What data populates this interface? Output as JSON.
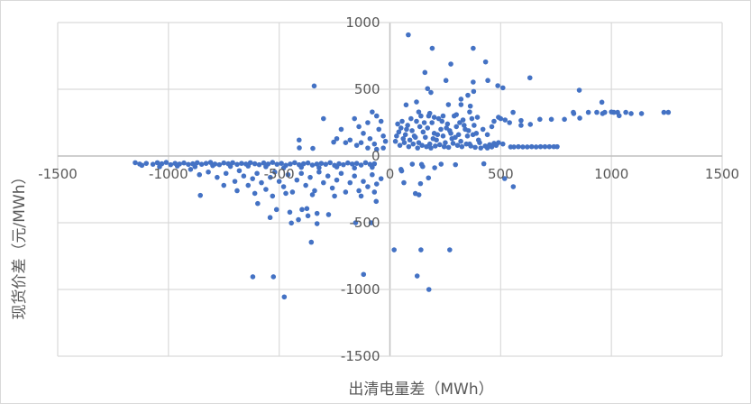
{
  "chart_data": {
    "type": "scatter",
    "title": "",
    "xlabel": "出清电量差（MWh）",
    "ylabel": "现货价差（元/MWh）",
    "xlim": [
      -1500,
      1500
    ],
    "ylim": [
      -1500,
      1000
    ],
    "xticks": [
      -1500,
      -1000,
      -500,
      0,
      500,
      1000,
      1500
    ],
    "yticks": [
      -1500,
      -1000,
      -500,
      0,
      500,
      1000
    ],
    "grid": true,
    "legend": "none",
    "color": "#4472c4",
    "points": [
      [
        83,
        908
      ],
      [
        191,
        807
      ],
      [
        376,
        807
      ],
      [
        432,
        705
      ],
      [
        275,
        689
      ],
      [
        158,
        626
      ],
      [
        632,
        586
      ],
      [
        253,
        566
      ],
      [
        442,
        566
      ],
      [
        376,
        554
      ],
      [
        487,
        527
      ],
      [
        510,
        511
      ],
      [
        855,
        493
      ],
      [
        170,
        505
      ],
      [
        185,
        476
      ],
      [
        378,
        484
      ],
      [
        352,
        455
      ],
      [
        957,
        403
      ],
      [
        120,
        405
      ],
      [
        73,
        383
      ],
      [
        321,
        426
      ],
      [
        264,
        385
      ],
      [
        363,
        374
      ],
      [
        321,
        385
      ],
      [
        556,
        327
      ],
      [
        592,
        266
      ],
      [
        592,
        230
      ],
      [
        634,
        237
      ],
      [
        677,
        275
      ],
      [
        729,
        275
      ],
      [
        788,
        275
      ],
      [
        828,
        327
      ],
      [
        857,
        284
      ],
      [
        896,
        327
      ],
      [
        934,
        327
      ],
      [
        970,
        327
      ],
      [
        1011,
        327
      ],
      [
        1028,
        327
      ],
      [
        1035,
        302
      ],
      [
        1065,
        327
      ],
      [
        1089,
        318
      ],
      [
        1136,
        318
      ],
      [
        1237,
        327
      ],
      [
        1257,
        327
      ],
      [
        830,
        318
      ],
      [
        960,
        318
      ],
      [
        1000,
        330
      ],
      [
        545,
        68
      ],
      [
        560,
        68
      ],
      [
        580,
        70
      ],
      [
        600,
        68
      ],
      [
        620,
        68
      ],
      [
        640,
        70
      ],
      [
        660,
        68
      ],
      [
        680,
        70
      ],
      [
        700,
        70
      ],
      [
        720,
        70
      ],
      [
        740,
        70
      ],
      [
        755,
        70
      ],
      [
        510,
        90
      ],
      [
        470,
        95
      ],
      [
        450,
        85
      ],
      [
        430,
        75
      ],
      [
        440,
        60
      ],
      [
        460,
        68
      ],
      [
        480,
        80
      ],
      [
        490,
        100
      ],
      [
        30,
        150
      ],
      [
        40,
        180
      ],
      [
        50,
        210
      ],
      [
        60,
        130
      ],
      [
        70,
        160
      ],
      [
        80,
        230
      ],
      [
        90,
        120
      ],
      [
        100,
        190
      ],
      [
        110,
        150
      ],
      [
        120,
        260
      ],
      [
        130,
        100
      ],
      [
        140,
        300
      ],
      [
        150,
        180
      ],
      [
        160,
        140
      ],
      [
        170,
        210
      ],
      [
        180,
        90
      ],
      [
        190,
        250
      ],
      [
        200,
        170
      ],
      [
        210,
        120
      ],
      [
        220,
        280
      ],
      [
        230,
        200
      ],
      [
        240,
        150
      ],
      [
        250,
        100
      ],
      [
        260,
        240
      ],
      [
        270,
        190
      ],
      [
        280,
        130
      ],
      [
        290,
        300
      ],
      [
        300,
        220
      ],
      [
        310,
        160
      ],
      [
        320,
        110
      ],
      [
        330,
        270
      ],
      [
        340,
        200
      ],
      [
        350,
        150
      ],
      [
        360,
        90
      ],
      [
        370,
        280
      ],
      [
        380,
        230
      ],
      [
        390,
        170
      ],
      [
        400,
        120
      ],
      [
        410,
        60
      ],
      [
        420,
        200
      ],
      [
        440,
        160
      ],
      [
        460,
        220
      ],
      [
        470,
        260
      ],
      [
        490,
        290
      ],
      [
        500,
        280
      ],
      [
        520,
        270
      ],
      [
        540,
        250
      ],
      [
        25,
        110
      ],
      [
        45,
        80
      ],
      [
        65,
        100
      ],
      [
        85,
        70
      ],
      [
        105,
        90
      ],
      [
        125,
        60
      ],
      [
        145,
        80
      ],
      [
        165,
        70
      ],
      [
        185,
        60
      ],
      [
        205,
        75
      ],
      [
        225,
        85
      ],
      [
        245,
        70
      ],
      [
        265,
        65
      ],
      [
        285,
        95
      ],
      [
        305,
        80
      ],
      [
        325,
        70
      ],
      [
        345,
        90
      ],
      [
        365,
        75
      ],
      [
        385,
        65
      ],
      [
        405,
        100
      ],
      [
        35,
        240
      ],
      [
        55,
        260
      ],
      [
        75,
        200
      ],
      [
        95,
        280
      ],
      [
        115,
        140
      ],
      [
        135,
        220
      ],
      [
        155,
        250
      ],
      [
        175,
        300
      ],
      [
        195,
        130
      ],
      [
        215,
        160
      ],
      [
        235,
        260
      ],
      [
        255,
        210
      ],
      [
        275,
        170
      ],
      [
        295,
        140
      ],
      [
        315,
        250
      ],
      [
        335,
        230
      ],
      [
        355,
        190
      ],
      [
        375,
        160
      ],
      [
        395,
        290
      ],
      [
        180,
        320
      ],
      [
        200,
        290
      ],
      [
        300,
        310
      ],
      [
        360,
        330
      ],
      [
        130,
        330
      ],
      [
        240,
        300
      ],
      [
        53,
        -112
      ],
      [
        63,
        -200
      ],
      [
        101,
        -61
      ],
      [
        138,
        -207
      ],
      [
        143,
        -63
      ],
      [
        148,
        -79
      ],
      [
        174,
        -164
      ],
      [
        202,
        -88
      ],
      [
        231,
        -61
      ],
      [
        296,
        -65
      ],
      [
        424,
        -58
      ],
      [
        518,
        -169
      ],
      [
        557,
        -230
      ],
      [
        115,
        -281
      ],
      [
        131,
        -291
      ],
      [
        19,
        -703
      ],
      [
        140,
        -703
      ],
      [
        270,
        -703
      ],
      [
        123,
        -899
      ],
      [
        176,
        -1000
      ],
      [
        50,
        -100
      ],
      [
        -619,
        -905
      ],
      [
        -526,
        -905
      ],
      [
        -477,
        -1056
      ],
      [
        -119,
        -887
      ],
      [
        -355,
        -646
      ],
      [
        -541,
        -461
      ],
      [
        -512,
        -401
      ],
      [
        -445,
        -502
      ],
      [
        -452,
        -421
      ],
      [
        -413,
        -477
      ],
      [
        -397,
        -401
      ],
      [
        -375,
        -394
      ],
      [
        -370,
        -448
      ],
      [
        -329,
        -430
      ],
      [
        -329,
        -507
      ],
      [
        -277,
        -439
      ],
      [
        -155,
        -500
      ],
      [
        -85,
        -500
      ],
      [
        -597,
        -356
      ],
      [
        -856,
        -295
      ],
      [
        -62,
        -340
      ],
      [
        -410,
        120
      ],
      [
        -409,
        61
      ],
      [
        -348,
        57
      ],
      [
        -254,
        104
      ],
      [
        -342,
        525
      ],
      [
        -180,
        120
      ],
      [
        -160,
        280
      ],
      [
        -140,
        220
      ],
      [
        -120,
        170
      ],
      [
        -100,
        250
      ],
      [
        -80,
        330
      ],
      [
        -60,
        300
      ],
      [
        -50,
        200
      ],
      [
        -40,
        260
      ],
      [
        -30,
        150
      ],
      [
        -20,
        110
      ],
      [
        -200,
        100
      ],
      [
        -220,
        200
      ],
      [
        -240,
        130
      ],
      [
        -300,
        280
      ],
      [
        -130,
        100
      ],
      [
        -90,
        130
      ],
      [
        -70,
        90
      ],
      [
        -100,
        60
      ],
      [
        -150,
        80
      ],
      [
        -60,
        50
      ],
      [
        -30,
        60
      ],
      [
        -1150,
        -50
      ],
      [
        -1130,
        -60
      ],
      [
        -1100,
        -55
      ],
      [
        -1070,
        -62
      ],
      [
        -1050,
        -50
      ],
      [
        -1030,
        -58
      ],
      [
        -1010,
        -48
      ],
      [
        -990,
        -65
      ],
      [
        -970,
        -55
      ],
      [
        -950,
        -60
      ],
      [
        -930,
        -52
      ],
      [
        -910,
        -63
      ],
      [
        -890,
        -58
      ],
      [
        -870,
        -50
      ],
      [
        -850,
        -62
      ],
      [
        -830,
        -55
      ],
      [
        -810,
        -48
      ],
      [
        -790,
        -60
      ],
      [
        -770,
        -65
      ],
      [
        -750,
        -52
      ],
      [
        -730,
        -58
      ],
      [
        -710,
        -50
      ],
      [
        -690,
        -63
      ],
      [
        -670,
        -55
      ],
      [
        -650,
        -60
      ],
      [
        -630,
        -50
      ],
      [
        -610,
        -58
      ],
      [
        -590,
        -65
      ],
      [
        -570,
        -52
      ],
      [
        -550,
        -60
      ],
      [
        -530,
        -48
      ],
      [
        -510,
        -62
      ],
      [
        -490,
        -55
      ],
      [
        -470,
        -70
      ],
      [
        -450,
        -60
      ],
      [
        -430,
        -50
      ],
      [
        -410,
        -65
      ],
      [
        -390,
        -58
      ],
      [
        -370,
        -52
      ],
      [
        -350,
        -68
      ],
      [
        -330,
        -60
      ],
      [
        -310,
        -55
      ],
      [
        -290,
        -62
      ],
      [
        -270,
        -50
      ],
      [
        -250,
        -70
      ],
      [
        -230,
        -58
      ],
      [
        -210,
        -65
      ],
      [
        -190,
        -52
      ],
      [
        -170,
        -60
      ],
      [
        -150,
        -55
      ],
      [
        -130,
        -68
      ],
      [
        -110,
        -50
      ],
      [
        -90,
        -62
      ],
      [
        -70,
        -58
      ],
      [
        -1120,
        -70
      ],
      [
        -1040,
        -80
      ],
      [
        -960,
        -75
      ],
      [
        -880,
        -80
      ],
      [
        -800,
        -72
      ],
      [
        -720,
        -78
      ],
      [
        -640,
        -75
      ],
      [
        -560,
        -80
      ],
      [
        -480,
        -90
      ],
      [
        -400,
        -85
      ],
      [
        -320,
        -88
      ],
      [
        -240,
        -82
      ],
      [
        -160,
        -90
      ],
      [
        -80,
        -85
      ],
      [
        -900,
        -100
      ],
      [
        -860,
        -140
      ],
      [
        -820,
        -120
      ],
      [
        -780,
        -160
      ],
      [
        -740,
        -130
      ],
      [
        -700,
        -190
      ],
      [
        -680,
        -110
      ],
      [
        -660,
        -150
      ],
      [
        -640,
        -220
      ],
      [
        -620,
        -170
      ],
      [
        -600,
        -130
      ],
      [
        -580,
        -200
      ],
      [
        -560,
        -250
      ],
      [
        -540,
        -160
      ],
      [
        -520,
        -120
      ],
      [
        -500,
        -190
      ],
      [
        -480,
        -230
      ],
      [
        -460,
        -140
      ],
      [
        -440,
        -270
      ],
      [
        -420,
        -180
      ],
      [
        -400,
        -130
      ],
      [
        -380,
        -220
      ],
      [
        -360,
        -160
      ],
      [
        -340,
        -260
      ],
      [
        -320,
        -120
      ],
      [
        -300,
        -200
      ],
      [
        -280,
        -150
      ],
      [
        -260,
        -240
      ],
      [
        -240,
        -180
      ],
      [
        -220,
        -130
      ],
      [
        -200,
        -270
      ],
      [
        -180,
        -200
      ],
      [
        -160,
        -150
      ],
      [
        -140,
        -260
      ],
      [
        -120,
        -190
      ],
      [
        -100,
        -230
      ],
      [
        -80,
        -140
      ],
      [
        -60,
        -210
      ],
      [
        -40,
        -170
      ],
      [
        -750,
        -220
      ],
      [
        -690,
        -260
      ],
      [
        -610,
        -280
      ],
      [
        -530,
        -300
      ],
      [
        -470,
        -280
      ],
      [
        -350,
        -290
      ],
      [
        -250,
        -300
      ],
      [
        -130,
        -300
      ],
      [
        -70,
        -270
      ]
    ]
  }
}
